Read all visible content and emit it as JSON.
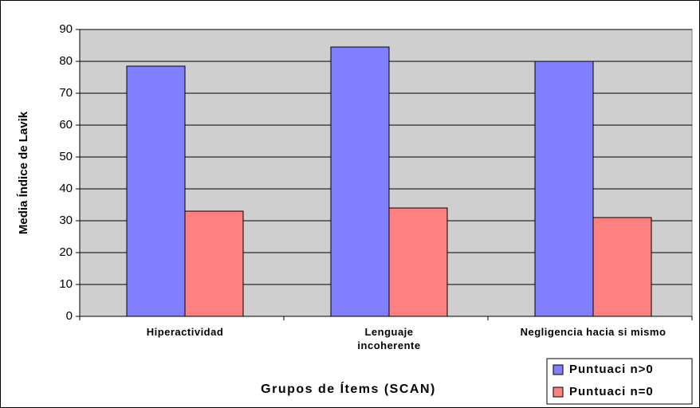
{
  "chart_data": {
    "type": "bar",
    "y_label": "Media Índice de Lavik",
    "x_label": "Grupos de Ítems (SCAN)",
    "categories": [
      "Hiperactividad",
      "Lenguaje incoherente",
      "Negligencia hacia si mismo"
    ],
    "series": [
      {
        "name": "Puntuaci n>0",
        "color": "#8080ff",
        "values": [
          78.5,
          84.5,
          80
        ]
      },
      {
        "name": "Puntuaci n=0",
        "color": "#ff8080",
        "values": [
          33,
          34,
          31
        ]
      }
    ],
    "ylim": [
      0,
      90
    ],
    "yticks": [
      0,
      10,
      20,
      30,
      40,
      50,
      60,
      70,
      80,
      90
    ],
    "grid": true,
    "legend": "lower right"
  }
}
